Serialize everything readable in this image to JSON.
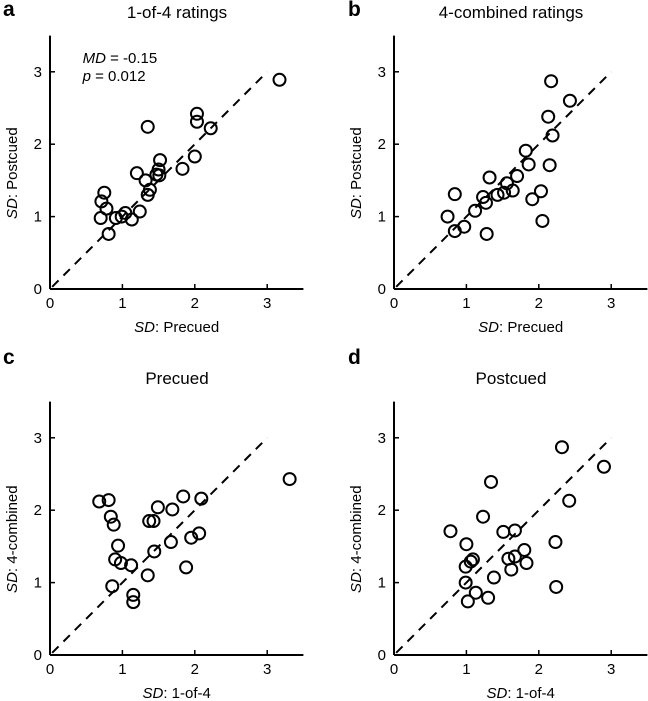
{
  "chart_data": [
    {
      "type": "scatter",
      "panel_letter": "a",
      "title": "1-of-4 ratings",
      "xlabel": {
        "italic": "SD",
        "rest": ": Precued"
      },
      "ylabel": {
        "italic": "SD",
        "rest": ": Postcued"
      },
      "xlim": [
        0,
        3.5
      ],
      "ylim": [
        0,
        3.5
      ],
      "xticks": [
        "0",
        "1",
        "2",
        "3"
      ],
      "yticks": [
        "0",
        "1",
        "2",
        "3"
      ],
      "reference_line": "identity (dashed)",
      "annotation": {
        "md_label": "MD",
        "md_value": " = -0.15",
        "p_label": "p",
        "p_value": " = 0.012"
      },
      "points": [
        [
          3.17,
          2.89
        ],
        [
          2.03,
          2.42
        ],
        [
          2.03,
          2.31
        ],
        [
          2.22,
          2.22
        ],
        [
          1.35,
          2.24
        ],
        [
          2.0,
          1.83
        ],
        [
          1.83,
          1.66
        ],
        [
          1.52,
          1.78
        ],
        [
          1.5,
          1.65
        ],
        [
          1.47,
          1.58
        ],
        [
          1.51,
          1.57
        ],
        [
          1.2,
          1.6
        ],
        [
          1.32,
          1.5
        ],
        [
          1.38,
          1.37
        ],
        [
          1.35,
          1.3
        ],
        [
          0.75,
          1.33
        ],
        [
          0.71,
          1.21
        ],
        [
          0.78,
          1.11
        ],
        [
          0.7,
          0.98
        ],
        [
          0.81,
          0.76
        ],
        [
          0.91,
          0.98
        ],
        [
          0.99,
          1.0
        ],
        [
          1.04,
          1.05
        ],
        [
          1.13,
          0.96
        ],
        [
          1.24,
          1.07
        ]
      ]
    },
    {
      "type": "scatter",
      "panel_letter": "b",
      "title": "4-combined ratings",
      "xlabel": {
        "italic": "SD",
        "rest": ": Precued"
      },
      "ylabel": {
        "italic": "SD",
        "rest": ": Postcued"
      },
      "xlim": [
        0,
        3.5
      ],
      "ylim": [
        0,
        3.5
      ],
      "xticks": [
        "0",
        "1",
        "2",
        "3"
      ],
      "yticks": [
        "0",
        "1",
        "2",
        "3"
      ],
      "reference_line": "identity (dashed)",
      "points": [
        [
          2.17,
          2.87
        ],
        [
          2.43,
          2.6
        ],
        [
          2.13,
          2.38
        ],
        [
          2.19,
          2.12
        ],
        [
          1.82,
          1.91
        ],
        [
          1.86,
          1.72
        ],
        [
          2.15,
          1.71
        ],
        [
          1.7,
          1.56
        ],
        [
          1.32,
          1.54
        ],
        [
          1.56,
          1.46
        ],
        [
          1.64,
          1.36
        ],
        [
          1.52,
          1.33
        ],
        [
          1.43,
          1.3
        ],
        [
          1.23,
          1.27
        ],
        [
          1.27,
          1.19
        ],
        [
          1.12,
          1.08
        ],
        [
          0.84,
          1.31
        ],
        [
          0.74,
          1.0
        ],
        [
          0.84,
          0.8
        ],
        [
          0.97,
          0.86
        ],
        [
          1.28,
          0.76
        ],
        [
          1.91,
          1.24
        ],
        [
          2.03,
          1.35
        ],
        [
          2.05,
          0.94
        ]
      ]
    },
    {
      "type": "scatter",
      "panel_letter": "c",
      "title": "Precued",
      "xlabel": {
        "italic": "SD",
        "rest": ": 1-of-4"
      },
      "ylabel": {
        "italic": "SD",
        "rest": ": 4-combined"
      },
      "xlim": [
        0,
        3.5
      ],
      "ylim": [
        0,
        3.5
      ],
      "xticks": [
        "0",
        "1",
        "2",
        "3"
      ],
      "yticks": [
        "0",
        "1",
        "2",
        "3"
      ],
      "reference_line": "identity (dashed)",
      "points": [
        [
          3.31,
          2.43
        ],
        [
          2.09,
          2.16
        ],
        [
          1.84,
          2.19
        ],
        [
          1.69,
          2.01
        ],
        [
          1.49,
          2.04
        ],
        [
          1.37,
          1.85
        ],
        [
          1.43,
          1.85
        ],
        [
          0.68,
          2.12
        ],
        [
          0.81,
          2.14
        ],
        [
          0.84,
          1.91
        ],
        [
          0.88,
          1.8
        ],
        [
          0.94,
          1.51
        ],
        [
          0.9,
          1.32
        ],
        [
          0.98,
          1.27
        ],
        [
          1.12,
          1.24
        ],
        [
          1.35,
          1.1
        ],
        [
          1.44,
          1.43
        ],
        [
          1.67,
          1.56
        ],
        [
          1.95,
          1.62
        ],
        [
          2.06,
          1.68
        ],
        [
          1.88,
          1.21
        ],
        [
          0.86,
          0.95
        ],
        [
          1.15,
          0.83
        ],
        [
          1.15,
          0.73
        ]
      ]
    },
    {
      "type": "scatter",
      "panel_letter": "d",
      "title": "Postcued",
      "xlabel": {
        "italic": "SD",
        "rest": ": 1-of-4"
      },
      "ylabel": {
        "italic": "SD",
        "rest": ": 4-combined"
      },
      "xlim": [
        0,
        3.5
      ],
      "ylim": [
        0,
        3.5
      ],
      "xticks": [
        "0",
        "1",
        "2",
        "3"
      ],
      "yticks": [
        "0",
        "1",
        "2",
        "3"
      ],
      "reference_line": "identity (dashed)",
      "points": [
        [
          2.9,
          2.6
        ],
        [
          2.32,
          2.87
        ],
        [
          2.42,
          2.13
        ],
        [
          1.34,
          2.39
        ],
        [
          1.23,
          1.91
        ],
        [
          0.78,
          1.71
        ],
        [
          1.51,
          1.7
        ],
        [
          1.67,
          1.72
        ],
        [
          1.0,
          1.53
        ],
        [
          2.23,
          1.56
        ],
        [
          1.8,
          1.45
        ],
        [
          1.67,
          1.36
        ],
        [
          1.58,
          1.33
        ],
        [
          1.83,
          1.27
        ],
        [
          1.62,
          1.18
        ],
        [
          1.09,
          1.32
        ],
        [
          1.06,
          1.29
        ],
        [
          0.99,
          1.22
        ],
        [
          1.38,
          1.07
        ],
        [
          0.99,
          1.0
        ],
        [
          1.13,
          0.86
        ],
        [
          1.02,
          0.74
        ],
        [
          1.3,
          0.79
        ],
        [
          2.24,
          0.94
        ]
      ]
    }
  ]
}
